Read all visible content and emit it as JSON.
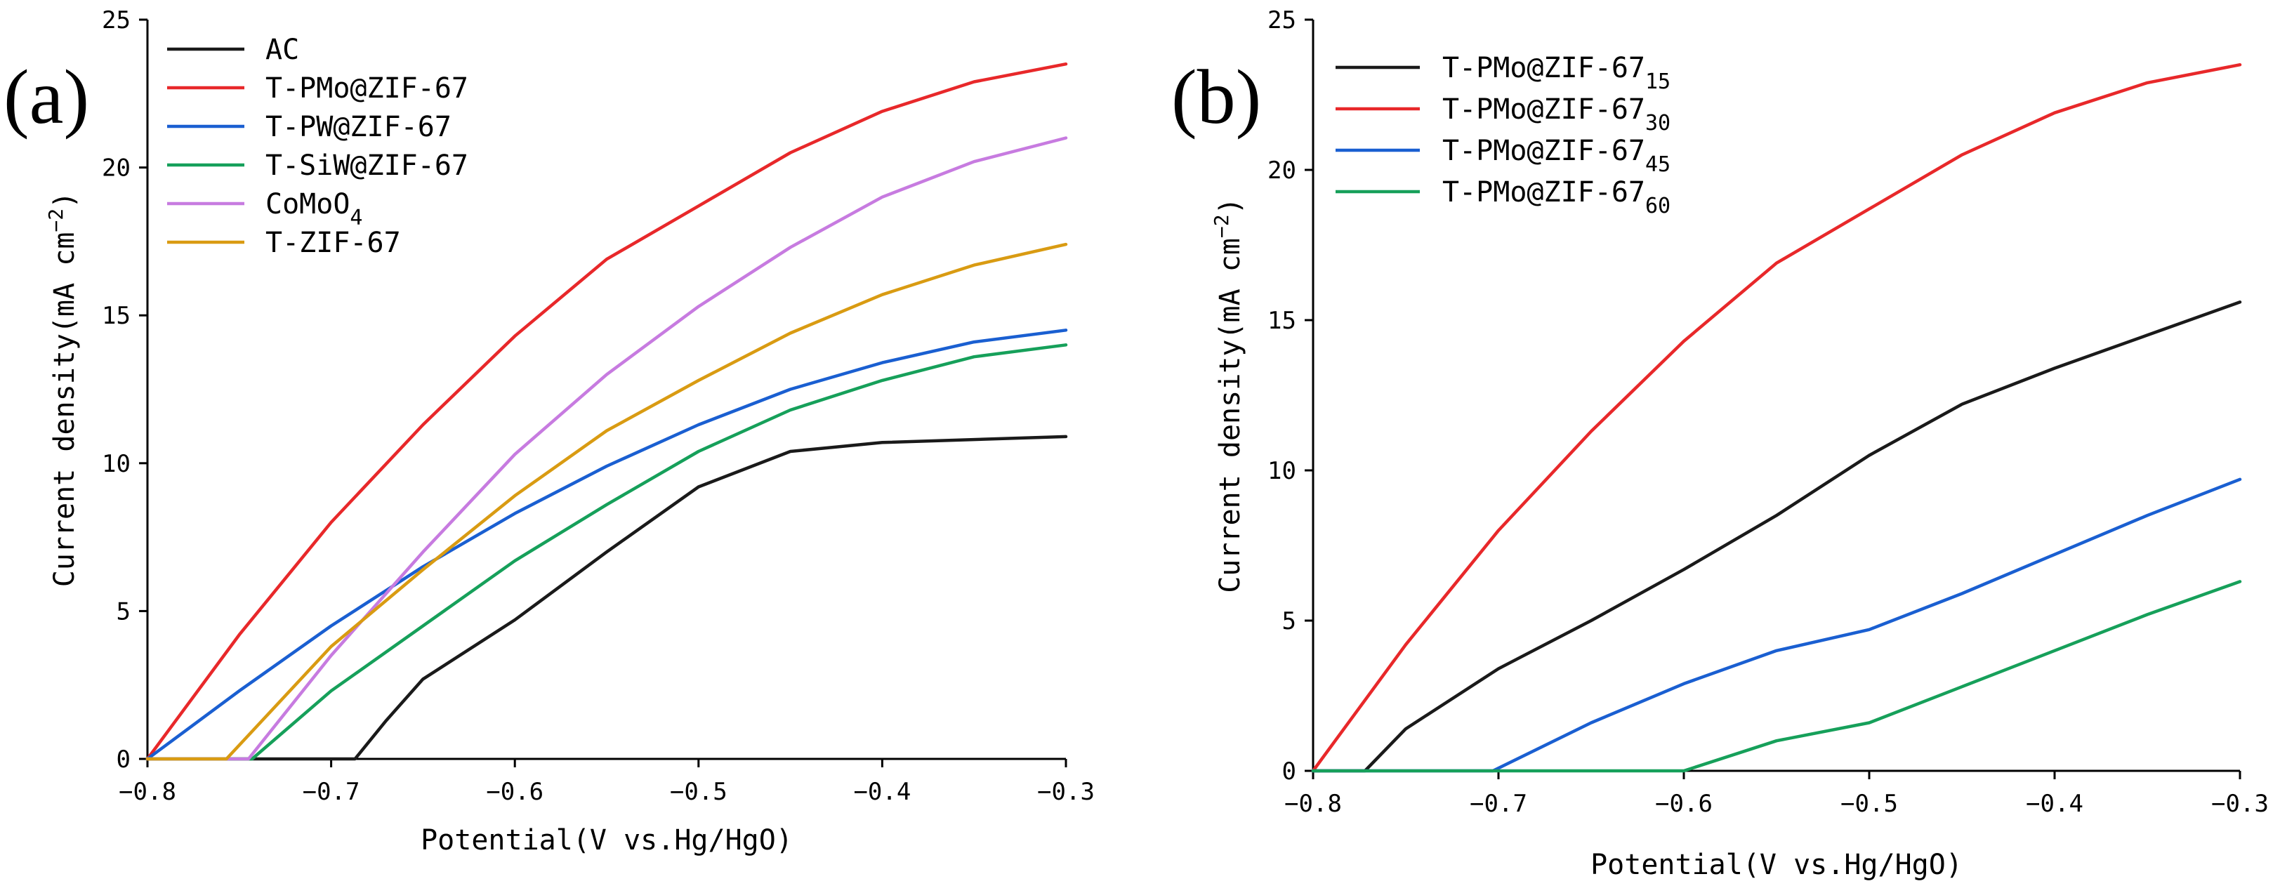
{
  "chart_data": [
    {
      "panel_label": "(a)",
      "type": "line",
      "xlabel": "Potential(V vs.Hg/HgO)",
      "ylabel_text": "Current density(mA cm",
      "ylabel_sup": "−2",
      "ylabel_tail": ")",
      "xlim": [
        -0.8,
        -0.3
      ],
      "ylim": [
        0,
        25
      ],
      "xticks": [
        -0.8,
        -0.7,
        -0.6,
        -0.5,
        -0.4,
        -0.3
      ],
      "xtick_labels": [
        "−0.8",
        "−0.7",
        "−0.6",
        "−0.5",
        "−0.4",
        "−0.3"
      ],
      "yticks": [
        0,
        5,
        10,
        15,
        20,
        25
      ],
      "ytick_labels": [
        "0",
        "5",
        "10",
        "15",
        "20",
        "25"
      ],
      "legend_position": "top-left",
      "series": [
        {
          "name": "AC",
          "sub": "",
          "color": "#1a1a1a",
          "points": [
            [
              -0.8,
              0
            ],
            [
              -0.687,
              0
            ],
            [
              -0.67,
              1.3
            ],
            [
              -0.65,
              2.7
            ],
            [
              -0.6,
              4.7
            ],
            [
              -0.55,
              7.0
            ],
            [
              -0.5,
              9.2
            ],
            [
              -0.45,
              10.4
            ],
            [
              -0.4,
              10.7
            ],
            [
              -0.3,
              10.9
            ]
          ]
        },
        {
          "name": "T-PMo@ZIF-67",
          "sub": "",
          "color": "#e8282a",
          "points": [
            [
              -0.8,
              0
            ],
            [
              -0.75,
              4.2
            ],
            [
              -0.7,
              8.0
            ],
            [
              -0.65,
              11.3
            ],
            [
              -0.6,
              14.3
            ],
            [
              -0.55,
              16.9
            ],
            [
              -0.5,
              18.7
            ],
            [
              -0.45,
              20.5
            ],
            [
              -0.4,
              21.9
            ],
            [
              -0.35,
              22.9
            ],
            [
              -0.3,
              23.5
            ]
          ]
        },
        {
          "name": "T-PW@ZIF-67",
          "sub": "",
          "color": "#1a5fd1",
          "points": [
            [
              -0.8,
              0
            ],
            [
              -0.75,
              2.3
            ],
            [
              -0.7,
              4.5
            ],
            [
              -0.65,
              6.5
            ],
            [
              -0.6,
              8.3
            ],
            [
              -0.55,
              9.9
            ],
            [
              -0.5,
              11.3
            ],
            [
              -0.45,
              12.5
            ],
            [
              -0.4,
              13.4
            ],
            [
              -0.35,
              14.1
            ],
            [
              -0.3,
              14.5
            ]
          ]
        },
        {
          "name": "T-SiW@ZIF-67",
          "sub": "",
          "color": "#16a05a",
          "points": [
            [
              -0.8,
              0
            ],
            [
              -0.743,
              0
            ],
            [
              -0.7,
              2.3
            ],
            [
              -0.65,
              4.5
            ],
            [
              -0.6,
              6.7
            ],
            [
              -0.55,
              8.6
            ],
            [
              -0.5,
              10.4
            ],
            [
              -0.45,
              11.8
            ],
            [
              -0.4,
              12.8
            ],
            [
              -0.35,
              13.6
            ],
            [
              -0.3,
              14.0
            ]
          ]
        },
        {
          "name": "CoMoO",
          "sub": "4",
          "color": "#c77be0",
          "points": [
            [
              -0.8,
              0
            ],
            [
              -0.745,
              0
            ],
            [
              -0.7,
              3.5
            ],
            [
              -0.65,
              7.0
            ],
            [
              -0.6,
              10.3
            ],
            [
              -0.55,
              13.0
            ],
            [
              -0.5,
              15.3
            ],
            [
              -0.45,
              17.3
            ],
            [
              -0.4,
              19.0
            ],
            [
              -0.35,
              20.2
            ],
            [
              -0.3,
              21.0
            ]
          ]
        },
        {
          "name": "T-ZIF-67",
          "sub": "",
          "color": "#d99b12",
          "points": [
            [
              -0.8,
              0
            ],
            [
              -0.757,
              0
            ],
            [
              -0.7,
              3.8
            ],
            [
              -0.65,
              6.4
            ],
            [
              -0.6,
              8.9
            ],
            [
              -0.55,
              11.1
            ],
            [
              -0.5,
              12.8
            ],
            [
              -0.45,
              14.4
            ],
            [
              -0.4,
              15.7
            ],
            [
              -0.35,
              16.7
            ],
            [
              -0.3,
              17.4
            ]
          ]
        }
      ]
    },
    {
      "panel_label": "(b)",
      "type": "line",
      "xlabel": "Potential(V vs.Hg/HgO)",
      "ylabel_text": "Current density(mA cm",
      "ylabel_sup": "−2",
      "ylabel_tail": ")",
      "xlim": [
        -0.8,
        -0.3
      ],
      "ylim": [
        0,
        25
      ],
      "xticks": [
        -0.8,
        -0.7,
        -0.6,
        -0.5,
        -0.4,
        -0.3
      ],
      "xtick_labels": [
        "−0.8",
        "−0.7",
        "−0.6",
        "−0.5",
        "−0.4",
        "−0.3"
      ],
      "yticks": [
        0,
        5,
        10,
        15,
        20,
        25
      ],
      "ytick_labels": [
        "0",
        "5",
        "10",
        "15",
        "20",
        "25"
      ],
      "legend_position": "top-left",
      "series": [
        {
          "name": "T-PMo@ZIF-67",
          "sub": "15",
          "color": "#1a1a1a",
          "points": [
            [
              -0.8,
              0
            ],
            [
              -0.772,
              0
            ],
            [
              -0.75,
              1.4
            ],
            [
              -0.7,
              3.4
            ],
            [
              -0.65,
              5.0
            ],
            [
              -0.6,
              6.7
            ],
            [
              -0.55,
              8.5
            ],
            [
              -0.5,
              10.5
            ],
            [
              -0.45,
              12.2
            ],
            [
              -0.4,
              13.4
            ],
            [
              -0.35,
              14.5
            ],
            [
              -0.3,
              15.6
            ]
          ]
        },
        {
          "name": "T-PMo@ZIF-67",
          "sub": "30",
          "color": "#e8282a",
          "points": [
            [
              -0.8,
              0
            ],
            [
              -0.75,
              4.2
            ],
            [
              -0.7,
              8.0
            ],
            [
              -0.65,
              11.3
            ],
            [
              -0.6,
              14.3
            ],
            [
              -0.55,
              16.9
            ],
            [
              -0.5,
              18.7
            ],
            [
              -0.45,
              20.5
            ],
            [
              -0.4,
              21.9
            ],
            [
              -0.35,
              22.9
            ],
            [
              -0.3,
              23.5
            ]
          ]
        },
        {
          "name": "T-PMo@ZIF-67",
          "sub": "45",
          "color": "#1a5fd1",
          "points": [
            [
              -0.8,
              0
            ],
            [
              -0.703,
              0
            ],
            [
              -0.65,
              1.6
            ],
            [
              -0.6,
              2.9
            ],
            [
              -0.55,
              4.0
            ],
            [
              -0.5,
              4.7
            ],
            [
              -0.45,
              5.9
            ],
            [
              -0.4,
              7.2
            ],
            [
              -0.35,
              8.5
            ],
            [
              -0.3,
              9.7
            ]
          ]
        },
        {
          "name": "T-PMo@ZIF-67",
          "sub": "60",
          "color": "#16a05a",
          "points": [
            [
              -0.8,
              0
            ],
            [
              -0.6,
              0
            ],
            [
              -0.55,
              1.0
            ],
            [
              -0.5,
              1.6
            ],
            [
              -0.45,
              2.8
            ],
            [
              -0.4,
              4.0
            ],
            [
              -0.35,
              5.2
            ],
            [
              -0.3,
              6.3
            ]
          ]
        }
      ]
    }
  ]
}
